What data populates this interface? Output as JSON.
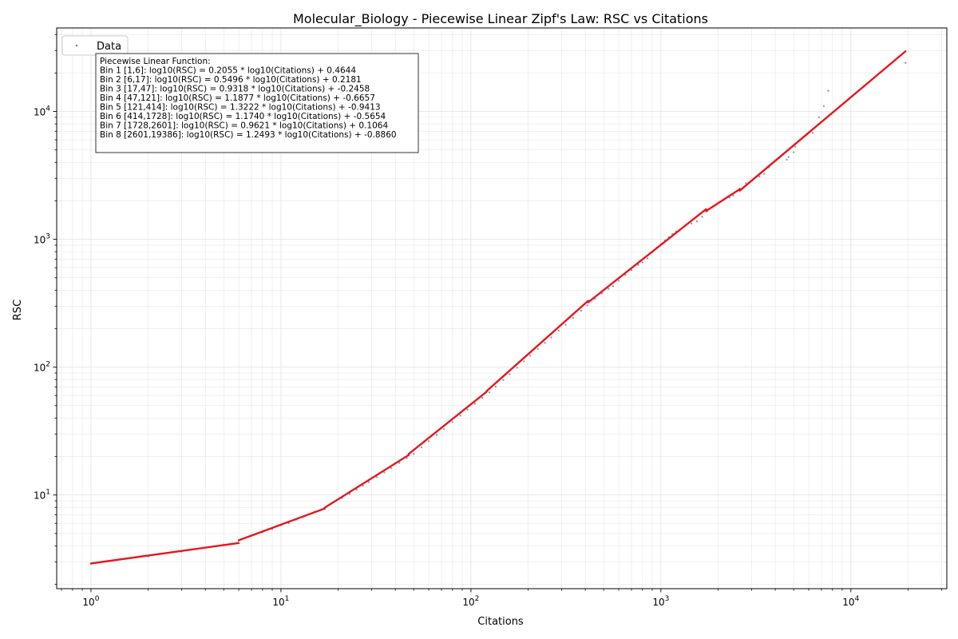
{
  "chart_data": {
    "type": "scatter",
    "title": "Molecular_Biology - Piecewise Linear Zipf's Law: RSC vs Citations",
    "xlabel": "Citations",
    "ylabel": "RSC",
    "x_scale": "log",
    "y_scale": "log",
    "xlim": [
      0.66,
      32000
    ],
    "ylim": [
      1.85,
      45000
    ],
    "grid": true,
    "legend": {
      "position": "top-left",
      "entries": [
        "Data"
      ]
    },
    "x_ticks": [
      {
        "value": 1,
        "base": "10",
        "exp": "0"
      },
      {
        "value": 10,
        "base": "10",
        "exp": "1"
      },
      {
        "value": 100,
        "base": "10",
        "exp": "2"
      },
      {
        "value": 1000,
        "base": "10",
        "exp": "3"
      },
      {
        "value": 10000,
        "base": "10",
        "exp": "4"
      }
    ],
    "y_ticks": [
      {
        "value": 10,
        "base": "10",
        "exp": "1"
      },
      {
        "value": 100,
        "base": "10",
        "exp": "2"
      },
      {
        "value": 1000,
        "base": "10",
        "exp": "3"
      },
      {
        "value": 10000,
        "base": "10",
        "exp": "4"
      }
    ],
    "fit_header": "Piecewise Linear Function:",
    "fit_lines": [
      "Bin 1 [1,6]: log10(RSC) = 0.2055 * log10(Citations) + 0.4644",
      "Bin 2 [6,17]: log10(RSC) = 0.5496 * log10(Citations) + 0.2181",
      "Bin 3 [17,47]: log10(RSC) = 0.9318 * log10(Citations) + -0.2458",
      "Bin 4 [47,121]: log10(RSC) = 1.1877 * log10(Citations) + -0.6657",
      "Bin 5 [121,414]: log10(RSC) = 1.3222 * log10(Citations) + -0.9413",
      "Bin 6 [414,1728]: log10(RSC) = 1.1740 * log10(Citations) + -0.5654",
      "Bin 7 [1728,2601]: log10(RSC) = 0.9621 * log10(Citations) + 0.1064",
      "Bin 8 [2601,19386]: log10(RSC) = 1.2493 * log10(Citations) + -0.8860"
    ],
    "fit_segments": [
      {
        "from": 1,
        "to": 6,
        "slope": 0.2055,
        "intercept": 0.4644
      },
      {
        "from": 6,
        "to": 17,
        "slope": 0.5496,
        "intercept": 0.2181
      },
      {
        "from": 17,
        "to": 47,
        "slope": 0.9318,
        "intercept": -0.2458
      },
      {
        "from": 47,
        "to": 121,
        "slope": 1.1877,
        "intercept": -0.6657
      },
      {
        "from": 121,
        "to": 414,
        "slope": 1.3222,
        "intercept": -0.9413
      },
      {
        "from": 414,
        "to": 1728,
        "slope": 1.174,
        "intercept": -0.5654
      },
      {
        "from": 1728,
        "to": 2601,
        "slope": 0.9621,
        "intercept": 0.1064
      },
      {
        "from": 2601,
        "to": 19386,
        "slope": 1.2493,
        "intercept": -0.886
      }
    ],
    "data_points": [
      [
        1,
        2.9
      ],
      [
        2,
        3.3
      ],
      [
        3,
        3.6
      ],
      [
        5,
        4.1
      ],
      [
        6,
        4.4
      ],
      [
        7,
        4.8
      ],
      [
        8,
        5.1
      ],
      [
        9,
        5.4
      ],
      [
        10,
        5.8
      ],
      [
        11,
        6.0
      ],
      [
        12,
        6.4
      ],
      [
        13,
        6.7
      ],
      [
        15,
        7.4
      ],
      [
        17,
        7.8
      ],
      [
        19,
        8.8
      ],
      [
        21,
        9.5
      ],
      [
        23,
        10.2
      ],
      [
        25,
        11.0
      ],
      [
        27,
        11.8
      ],
      [
        29,
        12.6
      ],
      [
        32,
        13.8
      ],
      [
        35,
        15.0
      ],
      [
        38,
        16.2
      ],
      [
        42,
        17.8
      ],
      [
        46,
        19.4
      ],
      [
        50,
        21.0
      ],
      [
        55,
        23.6
      ],
      [
        60,
        26.3
      ],
      [
        66,
        29.5
      ],
      [
        72,
        32.8
      ],
      [
        80,
        37.2
      ],
      [
        88,
        41.8
      ],
      [
        96,
        46.5
      ],
      [
        105,
        51.8
      ],
      [
        115,
        57.5
      ],
      [
        125,
        63.5
      ],
      [
        135,
        70.5
      ],
      [
        148,
        79.5
      ],
      [
        160,
        88.0
      ],
      [
        175,
        99.0
      ],
      [
        190,
        111.0
      ],
      [
        205,
        123.0
      ],
      [
        225,
        139.0
      ],
      [
        245,
        155.0
      ],
      [
        265,
        171.0
      ],
      [
        290,
        193.0
      ],
      [
        315,
        215.0
      ],
      [
        345,
        243.0
      ],
      [
        380,
        276.0
      ],
      [
        410,
        305.0
      ],
      [
        450,
        342.0
      ],
      [
        490,
        377.0
      ],
      [
        530,
        410.0
      ],
      [
        560,
        430.0
      ],
      [
        600,
        475.0
      ],
      [
        650,
        525.0
      ],
      [
        700,
        575.0
      ],
      [
        760,
        630.0
      ],
      [
        800,
        660.0
      ],
      [
        850,
        710.0
      ],
      [
        900,
        790.0
      ],
      [
        950,
        860.0
      ],
      [
        1000,
        920.0
      ],
      [
        1050,
        980.0
      ],
      [
        1100,
        1040.0
      ],
      [
        1150,
        1100.0
      ],
      [
        1200,
        1150.0
      ],
      [
        1450,
        1330.0
      ],
      [
        1550,
        1380.0
      ],
      [
        1650,
        1500.0
      ],
      [
        1750,
        1650.0
      ],
      [
        1900,
        1820.0
      ],
      [
        2300,
        2120.0
      ],
      [
        2400,
        2200.0
      ],
      [
        2600,
        2500.0
      ],
      [
        2800,
        2750.0
      ],
      [
        3300,
        3100.0
      ],
      [
        3500,
        3250.0
      ],
      [
        3700,
        3650.0
      ],
      [
        4600,
        4200.0
      ],
      [
        4700,
        4400.0
      ],
      [
        5000,
        4800.0
      ],
      [
        5100,
        5300.0
      ],
      [
        6300,
        6800.0
      ],
      [
        6800,
        9000.0
      ],
      [
        7200,
        11000.0
      ],
      [
        7600,
        14500.0
      ],
      [
        19386,
        24000.0
      ]
    ]
  },
  "colors": {
    "data": "#6a8fb5",
    "fit": "#e8161b",
    "grid": "#e6e6e6",
    "axes": "#000000",
    "box_edge": "#333333"
  }
}
